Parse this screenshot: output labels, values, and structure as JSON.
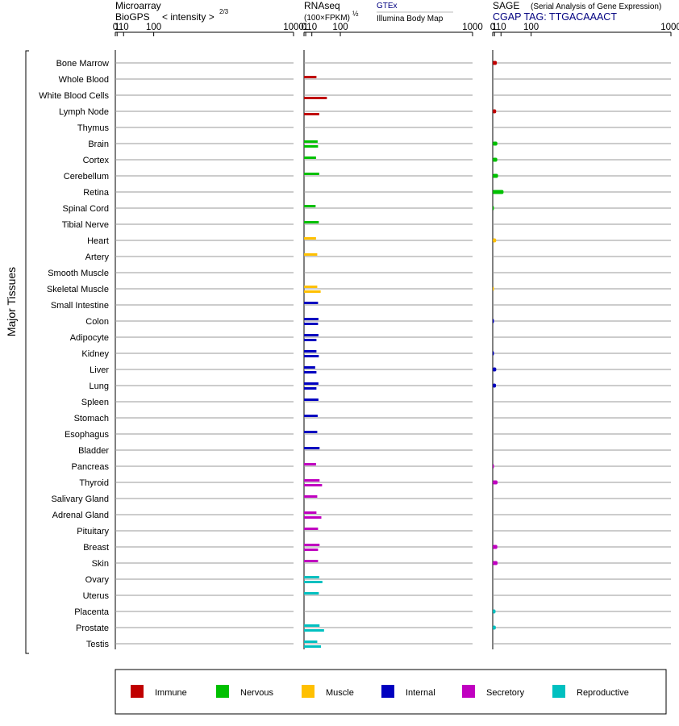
{
  "chart_data": {
    "type": "bar",
    "ylabel": "Major Tissues",
    "categories": [
      "Bone Marrow",
      "Whole Blood",
      "White Blood Cells",
      "Lymph Node",
      "Thymus",
      "Brain",
      "Cortex",
      "Cerebellum",
      "Retina",
      "Spinal Cord",
      "Tibial Nerve",
      "Heart",
      "Artery",
      "Smooth Muscle",
      "Skeletal Muscle",
      "Small Intestine",
      "Colon",
      "Adipocyte",
      "Kidney",
      "Liver",
      "Lung",
      "Spleen",
      "Stomach",
      "Esophagus",
      "Bladder",
      "Pancreas",
      "Thyroid",
      "Salivary Gland",
      "Adrenal Gland",
      "Pituitary",
      "Breast",
      "Skin",
      "Ovary",
      "Uterus",
      "Placenta",
      "Prostate",
      "Testis"
    ],
    "groups": [
      "Immune",
      "Immune",
      "Immune",
      "Immune",
      "Immune",
      "Nervous",
      "Nervous",
      "Nervous",
      "Nervous",
      "Nervous",
      "Nervous",
      "Muscle",
      "Muscle",
      "Muscle",
      "Muscle",
      "Internal",
      "Internal",
      "Internal",
      "Internal",
      "Internal",
      "Internal",
      "Internal",
      "Internal",
      "Internal",
      "Internal",
      "Secretory",
      "Secretory",
      "Secretory",
      "Secretory",
      "Secretory",
      "Secretory",
      "Secretory",
      "Reproductive",
      "Reproductive",
      "Reproductive",
      "Reproductive",
      "Reproductive"
    ],
    "legend": [
      {
        "name": "Immune",
        "color": "#c00000"
      },
      {
        "name": "Nervous",
        "color": "#00c000"
      },
      {
        "name": "Muscle",
        "color": "#ffc000"
      },
      {
        "name": "Internal",
        "color": "#0000c0"
      },
      {
        "name": "Secretory",
        "color": "#c000c0"
      },
      {
        "name": "Reproductive",
        "color": "#00c0c0"
      }
    ],
    "legend_placement": "bottom",
    "ticks": [
      "0",
      "1",
      "10",
      "100",
      "1000"
    ],
    "xlim": [
      0,
      1000
    ],
    "panels": [
      {
        "id": "microarray",
        "title_line1": "Microarray",
        "title_line2": "BioGPS",
        "scale_label": "< intensity >",
        "scale_exp": "2/3",
        "series": [
          {
            "name": "BioGPS",
            "values": [
              null,
              null,
              null,
              null,
              null,
              null,
              null,
              null,
              null,
              null,
              null,
              null,
              null,
              null,
              null,
              null,
              null,
              null,
              null,
              null,
              null,
              null,
              null,
              null,
              null,
              null,
              null,
              null,
              null,
              null,
              null,
              null,
              null,
              null,
              null,
              null,
              null
            ]
          }
        ]
      },
      {
        "id": "rnaseq",
        "title_line1": "RNAseq",
        "title_line2": "(100×FPKM)",
        "title_exp": "½",
        "legend_top": "GTEx",
        "legend_bottom": "Illumina Body Map",
        "series": [
          {
            "name": "GTEx",
            "values": [
              null,
              20,
              null,
              null,
              null,
              23,
              19,
              27,
              null,
              18,
              26,
              19,
              22,
              null,
              22,
              24,
              25,
              25,
              20,
              17,
              25,
              25,
              23,
              22,
              28,
              19,
              28,
              22,
              20,
              24,
              28,
              24,
              27,
              26,
              null,
              28,
              22
            ]
          },
          {
            "name": "Illumina Body Map",
            "values": [
              null,
              null,
              50,
              27,
              null,
              24,
              null,
              null,
              null,
              null,
              null,
              null,
              null,
              null,
              31,
              null,
              24,
              20,
              26,
              20,
              20,
              null,
              null,
              null,
              null,
              null,
              35,
              null,
              33,
              null,
              24,
              null,
              36,
              null,
              null,
              41,
              32
            ]
          }
        ]
      },
      {
        "id": "sage",
        "title_line1": "SAGE",
        "title_note": "(Serial Analysis of Gene Expression)",
        "title_line2": "CGAP TAG: TTGACAAACT",
        "series": [
          {
            "name": "SAGE",
            "values": [
              3.5,
              null,
              null,
              2.7,
              null,
              4.2,
              4.1,
              5.2,
              15,
              0.05,
              null,
              2.7,
              null,
              null,
              0.02,
              null,
              0.1,
              null,
              0.1,
              2.8,
              2.5,
              null,
              null,
              null,
              null,
              0.1,
              4.5,
              null,
              null,
              null,
              4.2,
              4.5,
              null,
              null,
              2,
              2.3,
              null
            ]
          }
        ]
      }
    ]
  }
}
